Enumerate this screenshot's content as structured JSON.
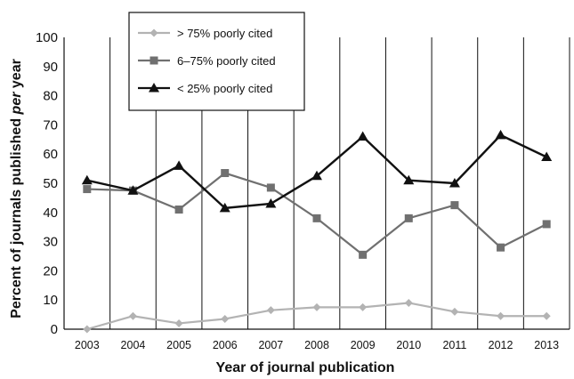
{
  "chart_data": {
    "type": "line",
    "title": "",
    "xlabel": "Year of journal publication",
    "ylabel_parts": [
      "Percent of journals published ",
      "per",
      " year"
    ],
    "x": [
      "2003",
      "2004",
      "2005",
      "2006",
      "2007",
      "2008",
      "2009",
      "2010",
      "2011",
      "2012",
      "2013"
    ],
    "ylim": [
      0,
      100
    ],
    "yticks": [
      0,
      10,
      20,
      30,
      40,
      50,
      60,
      70,
      80,
      90,
      100
    ],
    "grid": "vertical",
    "legend_position": "top-left",
    "series": [
      {
        "name": "> 75% poorly cited",
        "marker": "diamond",
        "color": "#b3b3b3",
        "values": [
          0,
          4.5,
          2,
          3.5,
          6.5,
          7.5,
          7.5,
          9,
          6,
          4.5,
          4.5
        ]
      },
      {
        "name": "6–75% poorly cited",
        "marker": "square",
        "color": "#707070",
        "values": [
          48,
          47.5,
          41,
          53.5,
          48.5,
          38,
          25.5,
          38,
          42.5,
          28,
          36
        ]
      },
      {
        "name": "< 25% poorly cited",
        "marker": "triangle",
        "color": "#111111",
        "values": [
          51,
          47.5,
          56,
          41.5,
          43,
          52.5,
          66,
          51,
          50,
          66.5,
          59
        ]
      }
    ]
  }
}
